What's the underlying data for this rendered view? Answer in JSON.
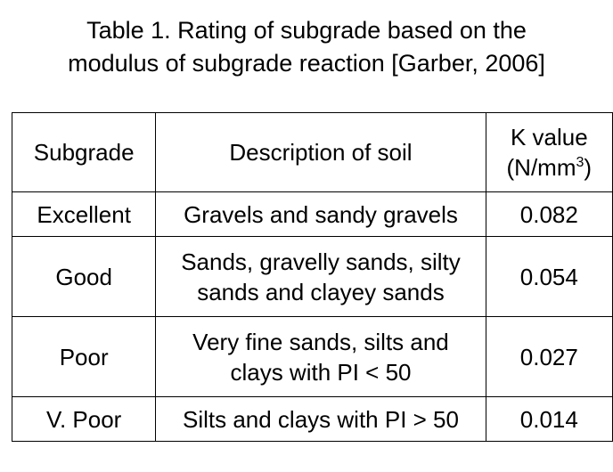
{
  "title_lines": [
    "Table 1. Rating of subgrade based on the",
    "modulus of subgrade reaction [Garber, 2006]"
  ],
  "table": {
    "header": [
      "Subgrade",
      "Description of soil",
      {
        "line1": "K value",
        "line2": "(N/mm",
        "sup": "3",
        "end": ")"
      }
    ],
    "rows": [
      [
        "Excellent",
        [
          "Gravels and sandy gravels"
        ],
        "0.082"
      ],
      [
        "Good",
        [
          "Sands, gravelly sands, silty",
          "sands and clayey sands"
        ],
        "0.054"
      ],
      [
        "Poor",
        [
          "Very fine sands, silts and",
          "clays with PI < 50"
        ],
        "0.027"
      ],
      [
        "V. Poor",
        [
          "Silts and clays with PI > 50"
        ],
        "0.014"
      ]
    ]
  }
}
